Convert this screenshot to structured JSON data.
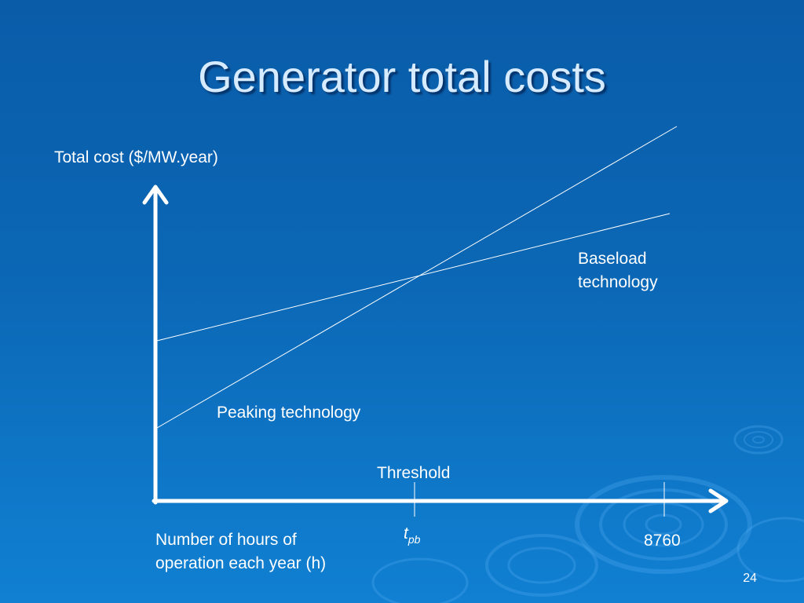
{
  "slide": {
    "title": "Generator total costs",
    "number": "24"
  },
  "diagram": {
    "y_axis_label": "Total cost ($/MW.year)",
    "x_axis_label_line1": "Number of hours of",
    "x_axis_label_line2": "operation each year (h)",
    "baseload_label_line1": "Baseload",
    "baseload_label_line2": "technology",
    "peaking_label": "Peaking technology",
    "threshold_label": "Threshold",
    "tpb_main": "t",
    "tpb_sub": "pb",
    "x_max_label": "8760"
  }
}
